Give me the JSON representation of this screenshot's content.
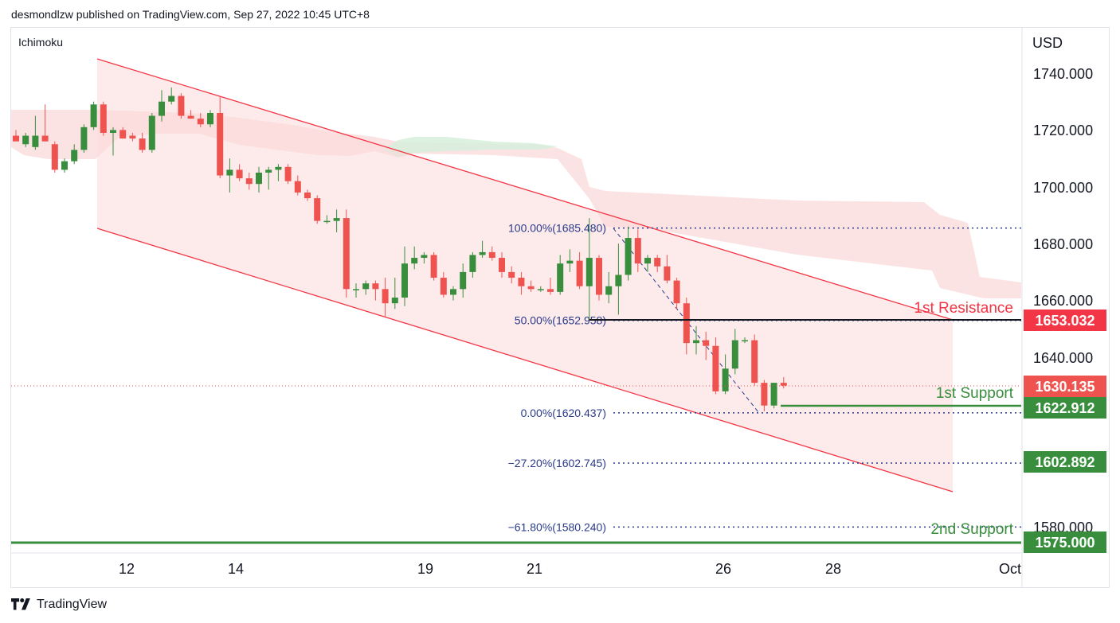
{
  "header": {
    "publisher": "desmondlzw published on TradingView.com, Sep 27, 2022 10:45 UTC+8"
  },
  "indicator": {
    "name": "Ichimoku"
  },
  "footer": {
    "brand": "TradingView"
  },
  "colors": {
    "bull": "#388e3c",
    "bear": "#ef5350",
    "channel": "#f23645",
    "cloud_bear": "#fbd9d9",
    "cloud_bull": "#d7eedc",
    "fib": "#2a3a8a",
    "support": "#388e3c",
    "resistance": "#f23645",
    "current_price_tag": "#ef5350"
  },
  "chart_data": {
    "type": "candlestick",
    "currency_label": "USD",
    "y_ticks": [
      "1740.000",
      "1720.000",
      "1700.000",
      "1680.000",
      "1660.000",
      "1640.000",
      "1580.000"
    ],
    "x_ticks": [
      "12",
      "14",
      "19",
      "21",
      "26",
      "28",
      "Oct"
    ],
    "ylim": [
      1569,
      1750
    ],
    "candles": [
      {
        "i": 0,
        "o": 1718,
        "h": 1720,
        "l": 1716,
        "c": 1716
      },
      {
        "i": 1,
        "o": 1715,
        "h": 1719,
        "l": 1714,
        "c": 1718
      },
      {
        "i": 2,
        "o": 1714,
        "h": 1725,
        "l": 1713,
        "c": 1718
      },
      {
        "i": 3,
        "o": 1718,
        "h": 1729,
        "l": 1716,
        "c": 1716
      },
      {
        "i": 4,
        "o": 1715,
        "h": 1716,
        "l": 1705,
        "c": 1706
      },
      {
        "i": 5,
        "o": 1706,
        "h": 1710,
        "l": 1705,
        "c": 1709
      },
      {
        "i": 6,
        "o": 1709,
        "h": 1715,
        "l": 1708,
        "c": 1713
      },
      {
        "i": 7,
        "o": 1713,
        "h": 1722,
        "l": 1712,
        "c": 1721
      },
      {
        "i": 8,
        "o": 1721,
        "h": 1730,
        "l": 1720,
        "c": 1729
      },
      {
        "i": 9,
        "o": 1729,
        "h": 1730,
        "l": 1718,
        "c": 1719
      },
      {
        "i": 10,
        "o": 1719,
        "h": 1721,
        "l": 1711,
        "c": 1720
      },
      {
        "i": 11,
        "o": 1720,
        "h": 1721,
        "l": 1717,
        "c": 1717
      },
      {
        "i": 12,
        "o": 1718,
        "h": 1719,
        "l": 1716,
        "c": 1717
      },
      {
        "i": 13,
        "o": 1717,
        "h": 1719,
        "l": 1712,
        "c": 1713
      },
      {
        "i": 14,
        "o": 1713,
        "h": 1726,
        "l": 1712,
        "c": 1725
      },
      {
        "i": 15,
        "o": 1725,
        "h": 1734,
        "l": 1723,
        "c": 1730
      },
      {
        "i": 16,
        "o": 1730,
        "h": 1735,
        "l": 1729,
        "c": 1732
      },
      {
        "i": 17,
        "o": 1732,
        "h": 1733,
        "l": 1724,
        "c": 1725
      },
      {
        "i": 18,
        "o": 1725,
        "h": 1727,
        "l": 1724,
        "c": 1724
      },
      {
        "i": 19,
        "o": 1724,
        "h": 1726,
        "l": 1721,
        "c": 1722
      },
      {
        "i": 20,
        "o": 1722,
        "h": 1727,
        "l": 1721,
        "c": 1726
      },
      {
        "i": 21,
        "o": 1726,
        "h": 1732,
        "l": 1703,
        "c": 1704
      },
      {
        "i": 22,
        "o": 1704,
        "h": 1710,
        "l": 1698,
        "c": 1706
      },
      {
        "i": 23,
        "o": 1706,
        "h": 1708,
        "l": 1702,
        "c": 1703
      },
      {
        "i": 24,
        "o": 1703,
        "h": 1705,
        "l": 1699,
        "c": 1701
      },
      {
        "i": 25,
        "o": 1701,
        "h": 1707,
        "l": 1698,
        "c": 1705
      },
      {
        "i": 26,
        "o": 1705,
        "h": 1707,
        "l": 1699,
        "c": 1706
      },
      {
        "i": 27,
        "o": 1706,
        "h": 1708,
        "l": 1702,
        "c": 1707
      },
      {
        "i": 28,
        "o": 1707,
        "h": 1708,
        "l": 1701,
        "c": 1702
      },
      {
        "i": 29,
        "o": 1702,
        "h": 1704,
        "l": 1697,
        "c": 1698
      },
      {
        "i": 30,
        "o": 1698,
        "h": 1699,
        "l": 1695,
        "c": 1696
      },
      {
        "i": 31,
        "o": 1696,
        "h": 1697,
        "l": 1687,
        "c": 1688
      },
      {
        "i": 32,
        "o": 1688,
        "h": 1690,
        "l": 1687,
        "c": 1688
      },
      {
        "i": 33,
        "o": 1688,
        "h": 1692,
        "l": 1684,
        "c": 1689
      },
      {
        "i": 34,
        "o": 1689,
        "h": 1692,
        "l": 1661,
        "c": 1664
      },
      {
        "i": 35,
        "o": 1664,
        "h": 1666,
        "l": 1661,
        "c": 1664
      },
      {
        "i": 36,
        "o": 1664,
        "h": 1667,
        "l": 1662,
        "c": 1666
      },
      {
        "i": 37,
        "o": 1666,
        "h": 1667,
        "l": 1660,
        "c": 1664
      },
      {
        "i": 38,
        "o": 1664,
        "h": 1668,
        "l": 1654,
        "c": 1659
      },
      {
        "i": 39,
        "o": 1659,
        "h": 1668,
        "l": 1657,
        "c": 1661
      },
      {
        "i": 40,
        "o": 1661,
        "h": 1679,
        "l": 1658,
        "c": 1673
      },
      {
        "i": 41,
        "o": 1673,
        "h": 1679,
        "l": 1671,
        "c": 1675
      },
      {
        "i": 42,
        "o": 1675,
        "h": 1677,
        "l": 1673,
        "c": 1676
      },
      {
        "i": 43,
        "o": 1676,
        "h": 1677,
        "l": 1667,
        "c": 1668
      },
      {
        "i": 44,
        "o": 1668,
        "h": 1670,
        "l": 1661,
        "c": 1662
      },
      {
        "i": 45,
        "o": 1662,
        "h": 1665,
        "l": 1660,
        "c": 1664
      },
      {
        "i": 46,
        "o": 1664,
        "h": 1673,
        "l": 1661,
        "c": 1670
      },
      {
        "i": 47,
        "o": 1670,
        "h": 1677,
        "l": 1668,
        "c": 1676
      },
      {
        "i": 48,
        "o": 1676,
        "h": 1681,
        "l": 1675,
        "c": 1677
      },
      {
        "i": 49,
        "o": 1677,
        "h": 1679,
        "l": 1674,
        "c": 1675
      },
      {
        "i": 50,
        "o": 1675,
        "h": 1677,
        "l": 1668,
        "c": 1670
      },
      {
        "i": 51,
        "o": 1670,
        "h": 1672,
        "l": 1666,
        "c": 1668
      },
      {
        "i": 52,
        "o": 1668,
        "h": 1670,
        "l": 1662,
        "c": 1665
      },
      {
        "i": 53,
        "o": 1665,
        "h": 1667,
        "l": 1663,
        "c": 1664
      },
      {
        "i": 54,
        "o": 1664,
        "h": 1665,
        "l": 1663,
        "c": 1664
      },
      {
        "i": 55,
        "o": 1664,
        "h": 1668,
        "l": 1662,
        "c": 1663
      },
      {
        "i": 56,
        "o": 1663,
        "h": 1676,
        "l": 1662,
        "c": 1673
      },
      {
        "i": 57,
        "o": 1673,
        "h": 1678,
        "l": 1670,
        "c": 1674
      },
      {
        "i": 58,
        "o": 1674,
        "h": 1677,
        "l": 1664,
        "c": 1665
      },
      {
        "i": 59,
        "o": 1665,
        "h": 1689,
        "l": 1653,
        "c": 1675
      },
      {
        "i": 60,
        "o": 1675,
        "h": 1676,
        "l": 1660,
        "c": 1662
      },
      {
        "i": 61,
        "o": 1662,
        "h": 1670,
        "l": 1659,
        "c": 1665
      },
      {
        "i": 62,
        "o": 1665,
        "h": 1680,
        "l": 1655,
        "c": 1669
      },
      {
        "i": 63,
        "o": 1669,
        "h": 1686,
        "l": 1667,
        "c": 1682
      },
      {
        "i": 64,
        "o": 1682,
        "h": 1685,
        "l": 1670,
        "c": 1673
      },
      {
        "i": 65,
        "o": 1673,
        "h": 1676,
        "l": 1670,
        "c": 1675
      },
      {
        "i": 66,
        "o": 1675,
        "h": 1676,
        "l": 1670,
        "c": 1672
      },
      {
        "i": 67,
        "o": 1672,
        "h": 1676,
        "l": 1666,
        "c": 1667
      },
      {
        "i": 68,
        "o": 1667,
        "h": 1668,
        "l": 1657,
        "c": 1659
      },
      {
        "i": 69,
        "o": 1659,
        "h": 1661,
        "l": 1641,
        "c": 1645
      },
      {
        "i": 70,
        "o": 1645,
        "h": 1651,
        "l": 1641,
        "c": 1646
      },
      {
        "i": 71,
        "o": 1646,
        "h": 1649,
        "l": 1639,
        "c": 1644
      },
      {
        "i": 72,
        "o": 1644,
        "h": 1647,
        "l": 1627,
        "c": 1628
      },
      {
        "i": 73,
        "o": 1628,
        "h": 1641,
        "l": 1627,
        "c": 1636
      },
      {
        "i": 74,
        "o": 1636,
        "h": 1650,
        "l": 1634,
        "c": 1646
      },
      {
        "i": 75,
        "o": 1646,
        "h": 1647,
        "l": 1645,
        "c": 1646
      },
      {
        "i": 76,
        "o": 1646,
        "h": 1648,
        "l": 1630,
        "c": 1631
      },
      {
        "i": 77,
        "o": 1631,
        "h": 1632,
        "l": 1621,
        "c": 1623
      },
      {
        "i": 78,
        "o": 1623,
        "h": 1631,
        "l": 1622,
        "c": 1631
      },
      {
        "i": 79,
        "o": 1631,
        "h": 1633,
        "l": 1629,
        "c": 1630
      }
    ],
    "fib_levels": [
      {
        "label": "100.00%(1685.480)",
        "price": 1685.48
      },
      {
        "label": "50.00%(1652.958)",
        "price": 1652.958
      },
      {
        "label": "0.00%(1620.437)",
        "price": 1620.437
      },
      {
        "label": "−27.20%(1602.745)",
        "price": 1602.745
      },
      {
        "label": "−61.80%(1580.240)",
        "price": 1580.24
      }
    ],
    "annotations": {
      "resistance_1": {
        "label": "1st Resistance",
        "price": 1653.032,
        "tag": "1653.032"
      },
      "support_1": {
        "label": "1st Support",
        "price": 1622.912,
        "tag": "1622.912"
      },
      "support_extra": {
        "price": 1602.892,
        "tag": "1602.892"
      },
      "support_2": {
        "label": "2nd Support",
        "price": 1575.0,
        "tag": "1575.000"
      },
      "current_price": {
        "price": 1630.135,
        "tag": "1630.135"
      }
    }
  }
}
